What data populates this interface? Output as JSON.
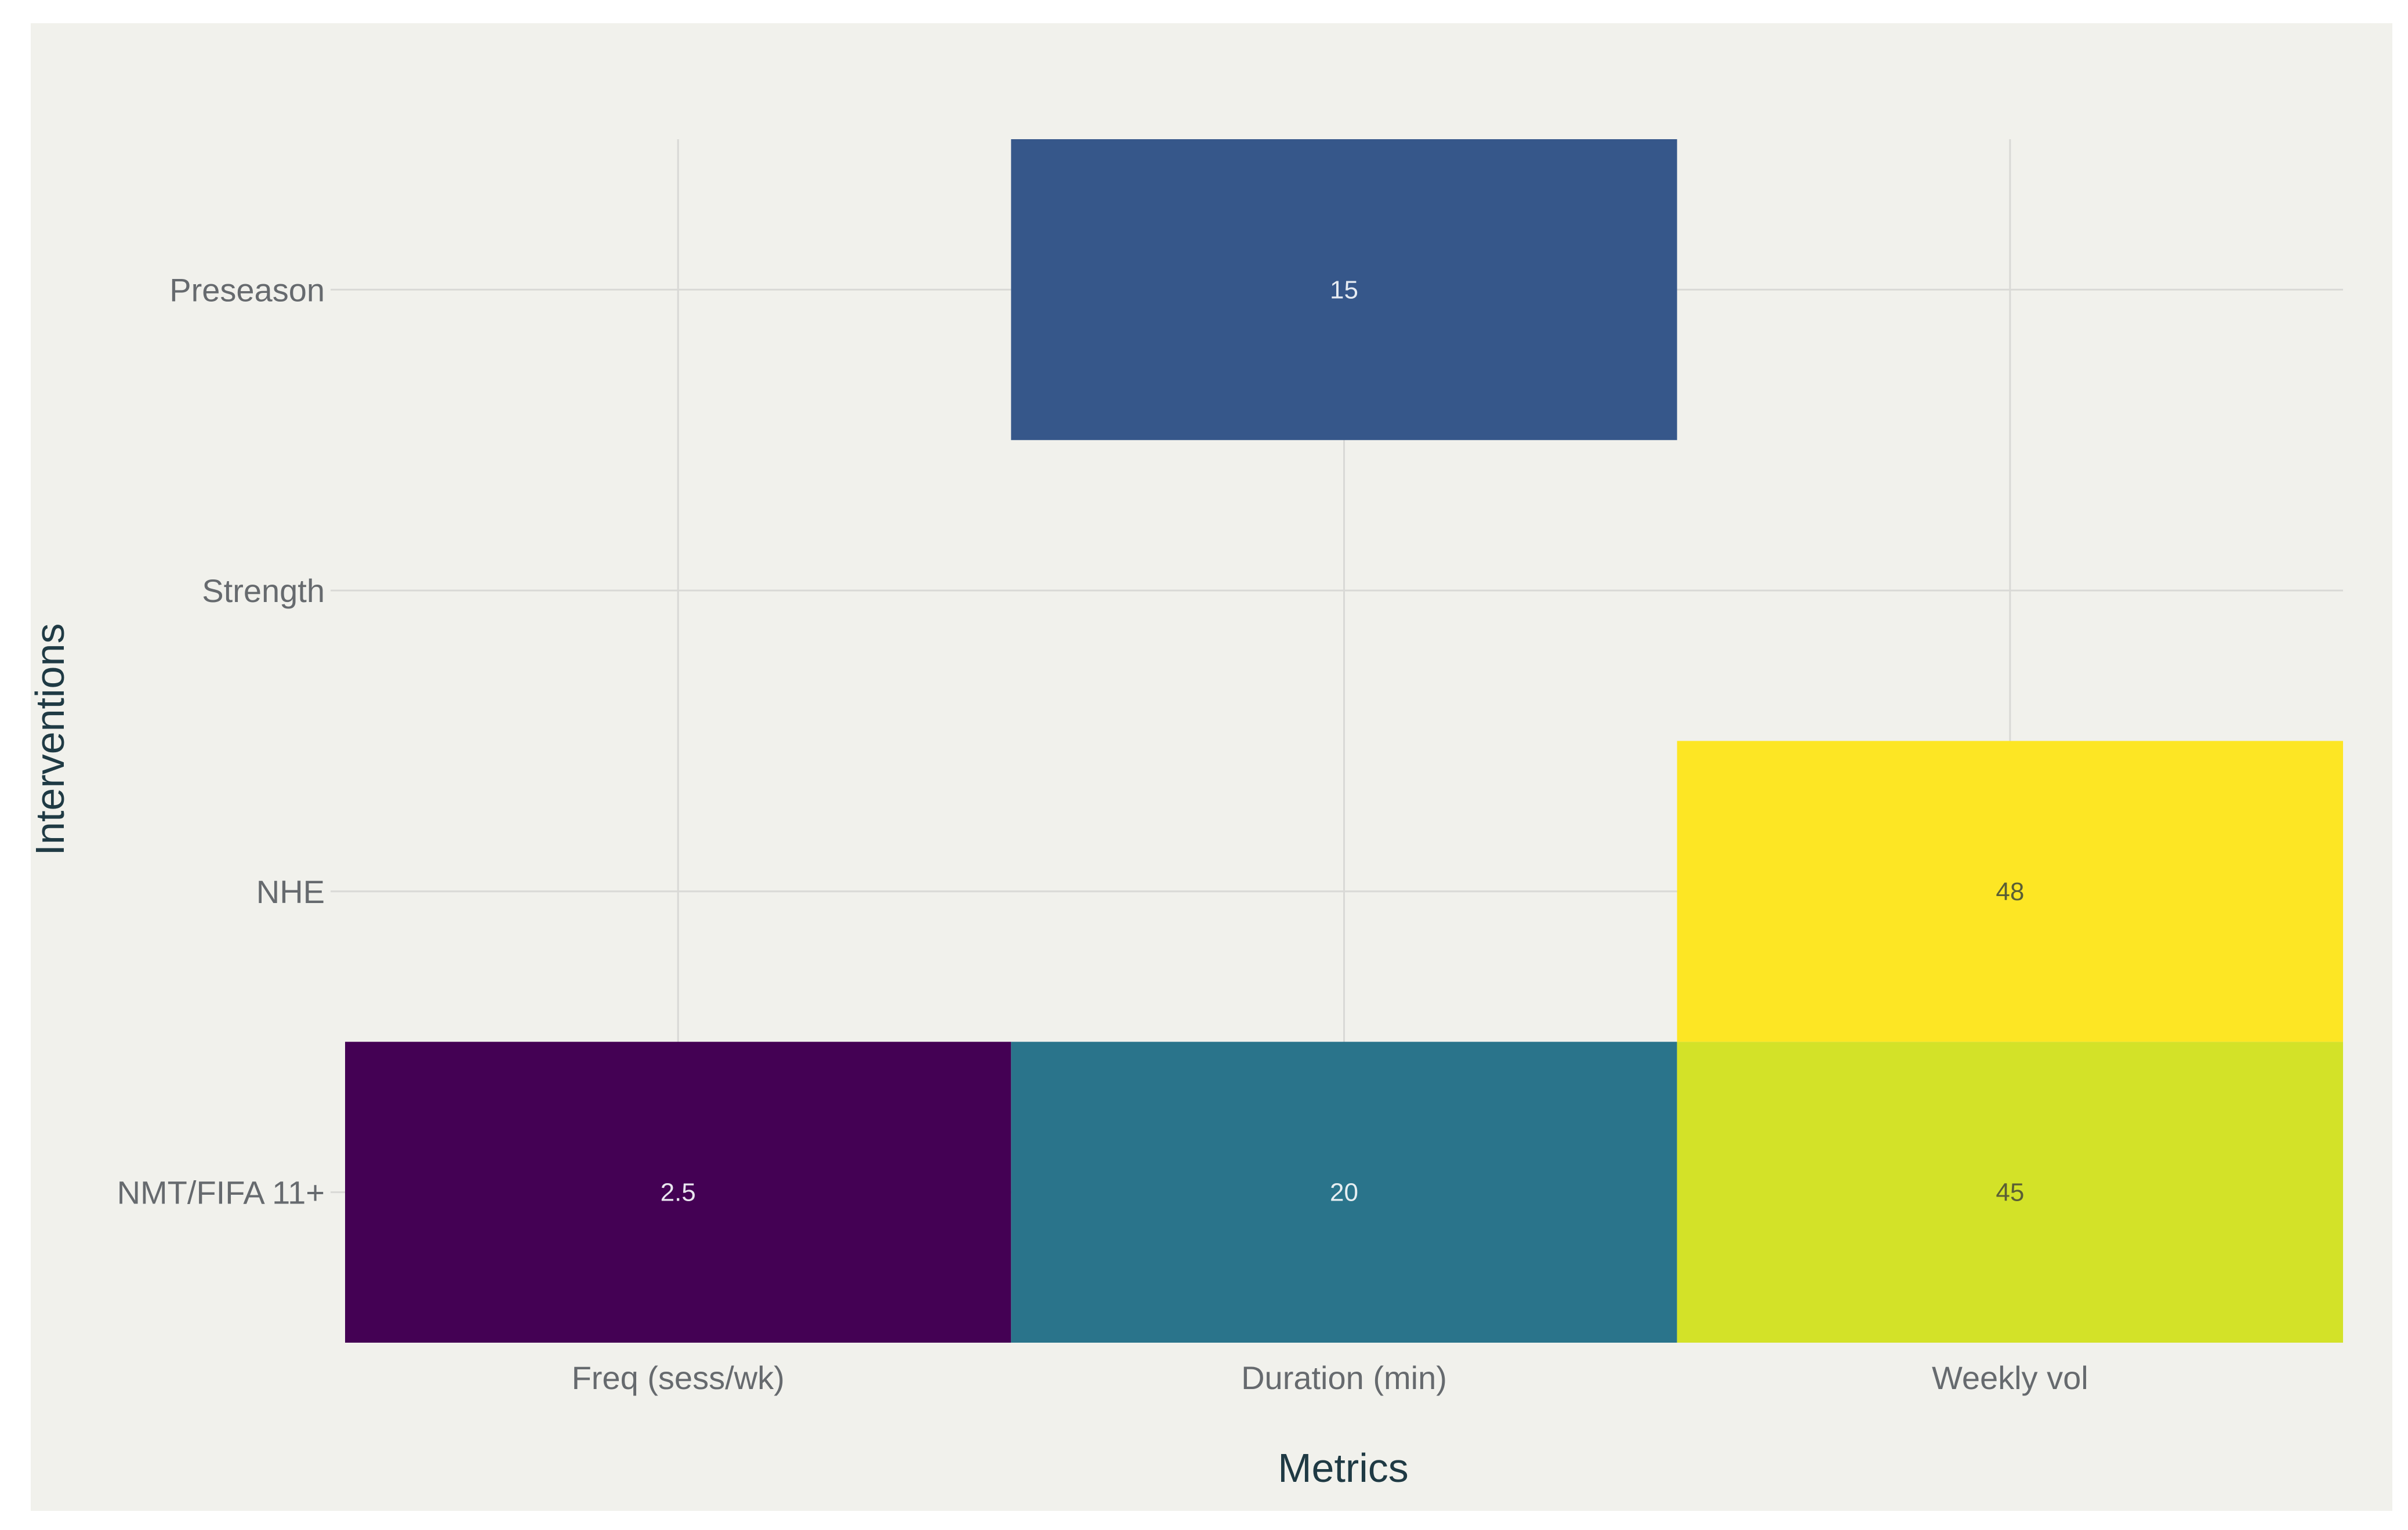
{
  "chart_data": {
    "type": "heatmap",
    "title": "",
    "xlabel": "Metrics",
    "ylabel": "Interventions",
    "x_categories": [
      "Freq (sess/wk)",
      "Duration (min)",
      "Weekly vol"
    ],
    "y_categories": [
      "NMT/FIFA 11+",
      "NHE",
      "Strength",
      "Preseason"
    ],
    "cells": [
      {
        "x": "Freq (sess/wk)",
        "y": "NMT/FIFA 11+",
        "value": 2.5,
        "label": "2.5",
        "color": "#440154",
        "text_color": "#e9e6ef"
      },
      {
        "x": "Duration (min)",
        "y": "NMT/FIFA 11+",
        "value": 20,
        "label": "20",
        "color": "#2a748b",
        "text_color": "#e6eef1"
      },
      {
        "x": "Weekly vol",
        "y": "NMT/FIFA 11+",
        "value": 45,
        "label": "45",
        "color": "#d3e228",
        "text_color": "#5a5e35"
      },
      {
        "x": "Weekly vol",
        "y": "NHE",
        "value": 48,
        "label": "48",
        "color": "#fde624",
        "text_color": "#5a5e35"
      },
      {
        "x": "Duration (min)",
        "y": "Preseason",
        "value": 15,
        "label": "15",
        "color": "#36578a",
        "text_color": "#e6ebf2"
      }
    ],
    "colorscale": "viridis",
    "grid": true,
    "legend": "none",
    "colors": {
      "panel_background": "#f1f1ec",
      "gridline": "#d9d9d6",
      "tick_text": "#666a6e",
      "title_text": "#1f3a44"
    }
  }
}
